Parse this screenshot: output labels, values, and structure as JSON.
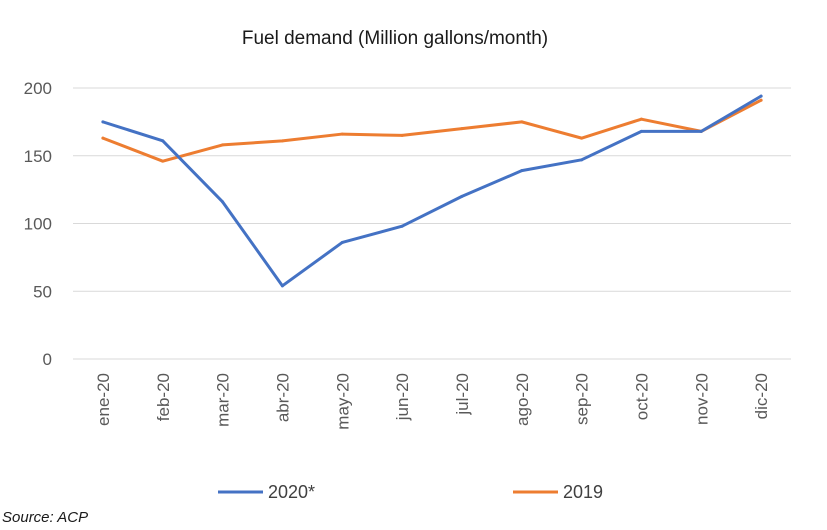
{
  "chart_data": {
    "type": "line",
    "title": "Fuel demand (Million gallons/month)",
    "xlabel": "",
    "ylabel": "",
    "categories": [
      "ene-20",
      "feb-20",
      "mar-20",
      "abr-20",
      "may-20",
      "jun-20",
      "jul-20",
      "ago-20",
      "sep-20",
      "oct-20",
      "nov-20",
      "dic-20"
    ],
    "ylim": [
      0,
      200
    ],
    "yticks": [
      "0",
      "50",
      "100",
      "150",
      "200"
    ],
    "grid": true,
    "legend_position": "bottom",
    "series": [
      {
        "name": "2020*",
        "color": "#4472c4",
        "values": [
          175,
          161,
          116,
          54,
          86,
          98,
          120,
          139,
          147,
          168,
          168,
          194
        ]
      },
      {
        "name": "2019",
        "color": "#ed7d31",
        "values": [
          163,
          146,
          158,
          161,
          166,
          165,
          170,
          175,
          163,
          177,
          168,
          191
        ]
      }
    ]
  },
  "source_note": "Source: ACP"
}
